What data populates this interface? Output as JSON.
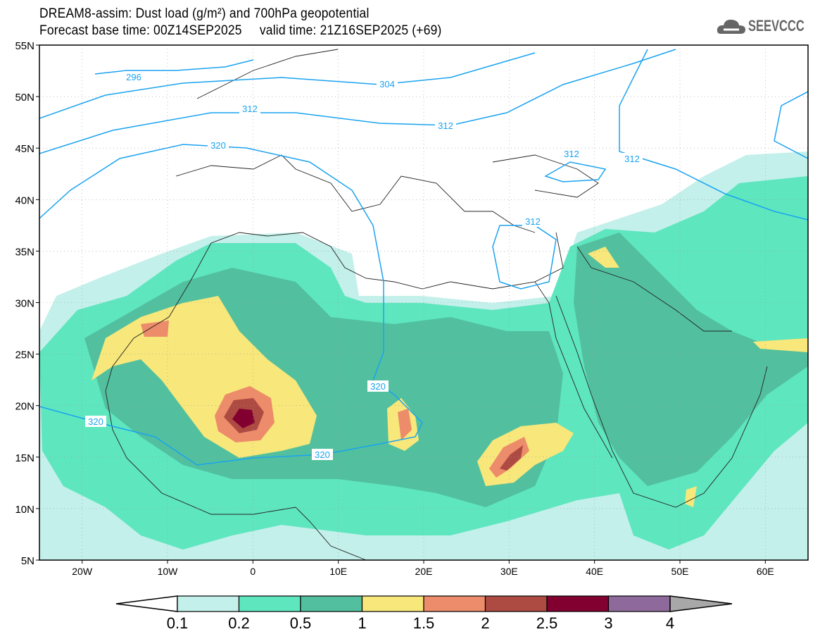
{
  "header": {
    "title_line1": "DREAM8-assim: Dust load (g/m²) and 700hPa geopotential",
    "title_line2": "Forecast base time: 00Z14SEP2025     valid time: 21Z16SEP2025 (+69)",
    "logo_text": "SEEVCCC"
  },
  "map": {
    "lat_ticks": [
      "55N",
      "50N",
      "45N",
      "40N",
      "35N",
      "30N",
      "25N",
      "20N",
      "15N",
      "10N",
      "5N"
    ],
    "lon_ticks": [
      "20W",
      "10W",
      "0",
      "10E",
      "20E",
      "30E",
      "40E",
      "50E",
      "60E"
    ],
    "contour_labels": [
      "296",
      "304",
      "312",
      "312",
      "320",
      "312",
      "312",
      "312",
      "320",
      "320",
      "320"
    ]
  },
  "colorbar": {
    "labels": [
      "0.1",
      "0.2",
      "0.5",
      "1",
      "1.5",
      "2",
      "2.5",
      "3",
      "4"
    ],
    "colors": [
      "#c3f0ea",
      "#5ee6bf",
      "#52c09e",
      "#f8e77a",
      "#ec8c6a",
      "#ad4a42",
      "#820030",
      "#8d6a9b"
    ],
    "over_color": "#a8a8a8",
    "contour_color": "#1aa3f0"
  }
}
